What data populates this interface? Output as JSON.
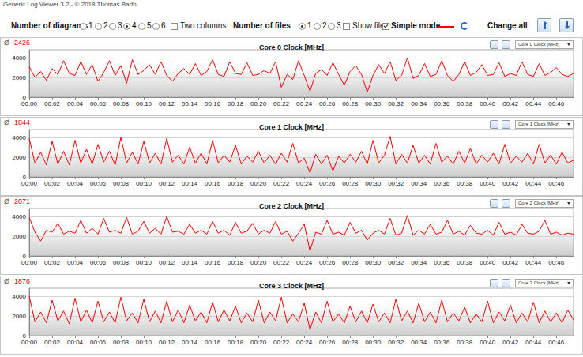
{
  "window": {
    "title": "Generic Log Viewer 3.2 - © 2018 Thomas Barth",
    "controls": {
      "diagrams": {
        "label": "Number of diagrams",
        "options": [
          "1",
          "2",
          "3",
          "4",
          "5",
          "6"
        ],
        "selected": "4"
      },
      "two_columns": {
        "label": "Two columns",
        "checked": false
      },
      "files": {
        "label": "Number of files",
        "options": [
          "1",
          "2",
          "3"
        ],
        "selected": "1"
      },
      "show_files": {
        "label": "Show files",
        "checked": false
      },
      "simple_mode": {
        "label": "Simple mode",
        "checked": true
      },
      "change_all": "Change all"
    }
  },
  "chart_data": [
    {
      "type": "line",
      "title": "Core 0 Clock [MHz]",
      "selector": "Core 0 Clock [MHz]",
      "mean_symbol": "Ø",
      "mean": 2426,
      "color": "#ff0000",
      "grid": true,
      "x": [
        0,
        0.5,
        1,
        1.5,
        2,
        2.5,
        3,
        3.5,
        4,
        4.5,
        5,
        5.5,
        6,
        6.5,
        7,
        7.5,
        8,
        8.5,
        9,
        9.5,
        10,
        10.5,
        11,
        11.5,
        12,
        12.5,
        13,
        13.5,
        14,
        14.5,
        15,
        15.5,
        16,
        16.5,
        17,
        17.5,
        18,
        18.5,
        19,
        19.5,
        20,
        20.5,
        21,
        21.5,
        22,
        22.5,
        23,
        23.5,
        24,
        24.5,
        25,
        25.5,
        26,
        26.5,
        27,
        27.5,
        28,
        28.5,
        29,
        29.5,
        30,
        30.5,
        31,
        31.5,
        32,
        32.5,
        33,
        33.5,
        34,
        34.5,
        35,
        35.5,
        36,
        36.5,
        37,
        37.5,
        38,
        38.5,
        39,
        39.5,
        40,
        40.5,
        41,
        41.5,
        42,
        42.5,
        43,
        43.5,
        44,
        44.5,
        45,
        45.5,
        46,
        46.5,
        47,
        47.5
      ],
      "values": [
        3100,
        2000,
        2600,
        1700,
        2900,
        2300,
        3700,
        2400,
        2200,
        3600,
        2300,
        3300,
        1600,
        2500,
        3700,
        2200,
        3200,
        1400,
        3800,
        2300,
        2700,
        3300,
        2300,
        3600,
        2200,
        1600,
        2400,
        2900,
        2300,
        3400,
        2200,
        2600,
        3800,
        2300,
        2100,
        3600,
        2400,
        2300,
        3500,
        2200,
        2300,
        2700,
        2400,
        3600,
        1000,
        2300,
        1800,
        3700,
        2200,
        600,
        2400,
        2800,
        2200,
        3500,
        2300,
        1200,
        2600,
        3200,
        2300,
        500,
        2200,
        3300,
        2400,
        3600,
        1700,
        2200,
        4000,
        1900,
        2200,
        3400,
        2100,
        2300,
        3700,
        2200,
        1600,
        2300,
        3600,
        2200,
        2500,
        3300,
        2200,
        2300,
        3500,
        2100,
        2400,
        2200,
        3600,
        2300,
        2100,
        3400,
        2200,
        2500,
        3000,
        2300,
        2100,
        2400
      ],
      "xlim": [
        0,
        47.5
      ],
      "xticks": [
        {
          "value": 0,
          "label": "00:00"
        },
        {
          "value": 2,
          "label": "00:02"
        },
        {
          "value": 4,
          "label": "00:04"
        },
        {
          "value": 6,
          "label": "00:06"
        },
        {
          "value": 8,
          "label": "00:08"
        },
        {
          "value": 10,
          "label": "00:10"
        },
        {
          "value": 12,
          "label": "00:12"
        },
        {
          "value": 14,
          "label": "00:14"
        },
        {
          "value": 16,
          "label": "00:16"
        },
        {
          "value": 18,
          "label": "00:18"
        },
        {
          "value": 20,
          "label": "00:20"
        },
        {
          "value": 22,
          "label": "00:22"
        },
        {
          "value": 24,
          "label": "00:24"
        },
        {
          "value": 26,
          "label": "00:26"
        },
        {
          "value": 28,
          "label": "00:28"
        },
        {
          "value": 30,
          "label": "00:30"
        },
        {
          "value": 32,
          "label": "00:32"
        },
        {
          "value": 34,
          "label": "00:34"
        },
        {
          "value": 36,
          "label": "00:36"
        },
        {
          "value": 38,
          "label": "00:38"
        },
        {
          "value": 40,
          "label": "00:40"
        },
        {
          "value": 42,
          "label": "00:42"
        },
        {
          "value": 44,
          "label": "00:44"
        },
        {
          "value": 46,
          "label": "00:46"
        }
      ],
      "ylim": [
        0,
        4800
      ],
      "yticks": [
        0,
        2000,
        4000
      ]
    },
    {
      "type": "line",
      "title": "Core 1 Clock [MHz]",
      "selector": "Core 1 Clock [MHz]",
      "mean_symbol": "Ø",
      "mean": 1844,
      "color": "#ff0000",
      "grid": true,
      "x": [
        0,
        0.5,
        1,
        1.5,
        2,
        2.5,
        3,
        3.5,
        4,
        4.5,
        5,
        5.5,
        6,
        6.5,
        7,
        7.5,
        8,
        8.5,
        9,
        9.5,
        10,
        10.5,
        11,
        11.5,
        12,
        12.5,
        13,
        13.5,
        14,
        14.5,
        15,
        15.5,
        16,
        16.5,
        17,
        17.5,
        18,
        18.5,
        19,
        19.5,
        20,
        20.5,
        21,
        21.5,
        22,
        22.5,
        23,
        23.5,
        24,
        24.5,
        25,
        25.5,
        26,
        26.5,
        27,
        27.5,
        28,
        28.5,
        29,
        29.5,
        30,
        30.5,
        31,
        31.5,
        32,
        32.5,
        33,
        33.5,
        34,
        34.5,
        35,
        35.5,
        36,
        36.5,
        37,
        37.5,
        38,
        38.5,
        39,
        39.5,
        40,
        40.5,
        41,
        41.5,
        42,
        42.5,
        43,
        43.5,
        44,
        44.5,
        45,
        45.5,
        46,
        46.5,
        47,
        47.5
      ],
      "values": [
        3900,
        1400,
        2500,
        1200,
        3600,
        1300,
        2600,
        1200,
        3700,
        1400,
        2800,
        1300,
        3300,
        1500,
        2600,
        1200,
        4000,
        1400,
        2500,
        1300,
        3600,
        1400,
        2400,
        1300,
        3900,
        1500,
        2200,
        1300,
        3000,
        1400,
        2400,
        1300,
        3700,
        1400,
        2200,
        1500,
        3200,
        1300,
        2100,
        1500,
        2600,
        1400,
        2200,
        1300,
        2400,
        1500,
        3400,
        1400,
        1900,
        400,
        2300,
        1300,
        2200,
        600,
        2100,
        1400,
        2300,
        1500,
        2600,
        1300,
        3700,
        1400,
        2200,
        4100,
        1300,
        2300,
        1400,
        3200,
        1400,
        2200,
        1300,
        3400,
        1500,
        2100,
        1300,
        2600,
        1400,
        2900,
        1300,
        2200,
        1500,
        2400,
        1300,
        3300,
        1400,
        2100,
        1500,
        2400,
        1300,
        3300,
        1400,
        2200,
        1300,
        2500,
        1400,
        1700
      ],
      "xlim": [
        0,
        47.5
      ],
      "xticks": [
        {
          "value": 0,
          "label": "00:00"
        },
        {
          "value": 2,
          "label": "00:02"
        },
        {
          "value": 4,
          "label": "00:04"
        },
        {
          "value": 6,
          "label": "00:06"
        },
        {
          "value": 8,
          "label": "00:08"
        },
        {
          "value": 10,
          "label": "00:10"
        },
        {
          "value": 12,
          "label": "00:12"
        },
        {
          "value": 14,
          "label": "00:14"
        },
        {
          "value": 16,
          "label": "00:16"
        },
        {
          "value": 18,
          "label": "00:18"
        },
        {
          "value": 20,
          "label": "00:20"
        },
        {
          "value": 22,
          "label": "00:22"
        },
        {
          "value": 24,
          "label": "00:24"
        },
        {
          "value": 26,
          "label": "00:26"
        },
        {
          "value": 28,
          "label": "00:28"
        },
        {
          "value": 30,
          "label": "00:30"
        },
        {
          "value": 32,
          "label": "00:32"
        },
        {
          "value": 34,
          "label": "00:34"
        },
        {
          "value": 36,
          "label": "00:36"
        },
        {
          "value": 38,
          "label": "00:38"
        },
        {
          "value": 40,
          "label": "00:40"
        },
        {
          "value": 42,
          "label": "00:42"
        },
        {
          "value": 44,
          "label": "00:44"
        },
        {
          "value": 46,
          "label": "00:46"
        }
      ],
      "ylim": [
        0,
        4800
      ],
      "yticks": [
        0,
        2000,
        4000
      ]
    },
    {
      "type": "line",
      "title": "Core 2 Clock [MHz]",
      "selector": "Core 2 Clock [MHz]",
      "mean_symbol": "Ø",
      "mean": 2071,
      "color": "#ff0000",
      "grid": true,
      "x": [
        0,
        0.5,
        1,
        1.5,
        2,
        2.5,
        3,
        3.5,
        4,
        4.5,
        5,
        5.5,
        6,
        6.5,
        7,
        7.5,
        8,
        8.5,
        9,
        9.5,
        10,
        10.5,
        11,
        11.5,
        12,
        12.5,
        13,
        13.5,
        14,
        14.5,
        15,
        15.5,
        16,
        16.5,
        17,
        17.5,
        18,
        18.5,
        19,
        19.5,
        20,
        20.5,
        21,
        21.5,
        22,
        22.5,
        23,
        23.5,
        24,
        24.5,
        25,
        25.5,
        26,
        26.5,
        27,
        27.5,
        28,
        28.5,
        29,
        29.5,
        30,
        30.5,
        31,
        31.5,
        32,
        32.5,
        33,
        33.5,
        34,
        34.5,
        35,
        35.5,
        36,
        36.5,
        37,
        37.5,
        38,
        38.5,
        39,
        39.5,
        40,
        40.5,
        41,
        41.5,
        42,
        42.5,
        43,
        43.5,
        44,
        44.5,
        45,
        45.5,
        46,
        46.5,
        47,
        47.5
      ],
      "values": [
        3900,
        2400,
        1500,
        2600,
        2400,
        3300,
        2200,
        2500,
        2300,
        3600,
        2300,
        2800,
        2200,
        3800,
        2400,
        2600,
        2300,
        3900,
        2200,
        2500,
        3500,
        2300,
        2800,
        2200,
        4000,
        2400,
        2500,
        2200,
        3200,
        2300,
        2600,
        2200,
        3500,
        2300,
        2600,
        2100,
        3400,
        2300,
        2500,
        3300,
        2200,
        2600,
        2300,
        3500,
        2200,
        2500,
        1500,
        2300,
        3200,
        500,
        2400,
        2200,
        3600,
        2200,
        2400,
        2100,
        3400,
        2300,
        2600,
        1600,
        2300,
        2600,
        2200,
        3800,
        2100,
        2300,
        4100,
        2100,
        2600,
        2200,
        3200,
        2200,
        2400,
        3600,
        2200,
        2500,
        2100,
        3100,
        2300,
        2200,
        2600,
        2100,
        3400,
        2200,
        2400,
        2100,
        3200,
        2300,
        2200,
        2500,
        3600,
        2200,
        2400,
        2100,
        2300,
        2200
      ],
      "xlim": [
        0,
        47.5
      ],
      "xticks": [
        {
          "value": 0,
          "label": "00:00"
        },
        {
          "value": 2,
          "label": "00:02"
        },
        {
          "value": 4,
          "label": "00:04"
        },
        {
          "value": 6,
          "label": "00:06"
        },
        {
          "value": 8,
          "label": "00:08"
        },
        {
          "value": 10,
          "label": "00:10"
        },
        {
          "value": 12,
          "label": "00:12"
        },
        {
          "value": 14,
          "label": "00:14"
        },
        {
          "value": 16,
          "label": "00:16"
        },
        {
          "value": 18,
          "label": "00:18"
        },
        {
          "value": 20,
          "label": "00:20"
        },
        {
          "value": 22,
          "label": "00:22"
        },
        {
          "value": 24,
          "label": "00:24"
        },
        {
          "value": 26,
          "label": "00:26"
        },
        {
          "value": 28,
          "label": "00:28"
        },
        {
          "value": 30,
          "label": "00:30"
        },
        {
          "value": 32,
          "label": "00:32"
        },
        {
          "value": 34,
          "label": "00:34"
        },
        {
          "value": 36,
          "label": "00:36"
        },
        {
          "value": 38,
          "label": "00:38"
        },
        {
          "value": 40,
          "label": "00:40"
        },
        {
          "value": 42,
          "label": "00:42"
        },
        {
          "value": 44,
          "label": "00:44"
        },
        {
          "value": 46,
          "label": "00:46"
        }
      ],
      "ylim": [
        0,
        4800
      ],
      "yticks": [
        0,
        2000,
        4000
      ]
    },
    {
      "type": "line",
      "title": "Core 3 Clock [MHz]",
      "selector": "Core 3 Clock [MHz]",
      "mean_symbol": "Ø",
      "mean": 1876,
      "color": "#ff0000",
      "grid": true,
      "x": [
        0,
        0.5,
        1,
        1.5,
        2,
        2.5,
        3,
        3.5,
        4,
        4.5,
        5,
        5.5,
        6,
        6.5,
        7,
        7.5,
        8,
        8.5,
        9,
        9.5,
        10,
        10.5,
        11,
        11.5,
        12,
        12.5,
        13,
        13.5,
        14,
        14.5,
        15,
        15.5,
        16,
        16.5,
        17,
        17.5,
        18,
        18.5,
        19,
        19.5,
        20,
        20.5,
        21,
        21.5,
        22,
        22.5,
        23,
        23.5,
        24,
        24.5,
        25,
        25.5,
        26,
        26.5,
        27,
        27.5,
        28,
        28.5,
        29,
        29.5,
        30,
        30.5,
        31,
        31.5,
        32,
        32.5,
        33,
        33.5,
        34,
        34.5,
        35,
        35.5,
        36,
        36.5,
        37,
        37.5,
        38,
        38.5,
        39,
        39.5,
        40,
        40.5,
        41,
        41.5,
        42,
        42.5,
        43,
        43.5,
        44,
        44.5,
        45,
        45.5,
        46,
        46.5,
        47,
        47.5
      ],
      "values": [
        4000,
        1400,
        2400,
        1300,
        3600,
        1500,
        2500,
        1200,
        3800,
        1400,
        2600,
        1300,
        3500,
        1400,
        2400,
        1300,
        3900,
        1500,
        2300,
        1300,
        3700,
        1400,
        2500,
        1300,
        3500,
        1400,
        2600,
        1300,
        3100,
        1500,
        2400,
        1300,
        3400,
        1400,
        2600,
        1500,
        3000,
        1300,
        2300,
        1400,
        3600,
        1300,
        2400,
        1500,
        3900,
        1300,
        2200,
        1400,
        3300,
        600,
        2400,
        1300,
        3500,
        1400,
        2200,
        1300,
        3000,
        1400,
        2500,
        1300,
        3200,
        1400,
        2300,
        1300,
        3700,
        1500,
        2500,
        1300,
        3300,
        1400,
        2400,
        1300,
        3600,
        1400,
        2300,
        1500,
        2900,
        1300,
        2200,
        1400,
        3500,
        1300,
        2400,
        1500,
        3100,
        1300,
        2300,
        1400,
        3400,
        1300,
        2500,
        1400,
        2300,
        1300,
        2600,
        1600
      ],
      "xlim": [
        0,
        47.5
      ],
      "xticks": [
        {
          "value": 0,
          "label": "00:00"
        },
        {
          "value": 2,
          "label": "00:02"
        },
        {
          "value": 4,
          "label": "00:04"
        },
        {
          "value": 6,
          "label": "00:06"
        },
        {
          "value": 8,
          "label": "00:08"
        },
        {
          "value": 10,
          "label": "00:10"
        },
        {
          "value": 12,
          "label": "00:12"
        },
        {
          "value": 14,
          "label": "00:14"
        },
        {
          "value": 16,
          "label": "00:16"
        },
        {
          "value": 18,
          "label": "00:18"
        },
        {
          "value": 20,
          "label": "00:20"
        },
        {
          "value": 22,
          "label": "00:22"
        },
        {
          "value": 24,
          "label": "00:24"
        },
        {
          "value": 26,
          "label": "00:26"
        },
        {
          "value": 28,
          "label": "00:28"
        },
        {
          "value": 30,
          "label": "00:30"
        },
        {
          "value": 32,
          "label": "00:32"
        },
        {
          "value": 34,
          "label": "00:34"
        },
        {
          "value": 36,
          "label": "00:36"
        },
        {
          "value": 38,
          "label": "00:38"
        },
        {
          "value": 40,
          "label": "00:40"
        },
        {
          "value": 42,
          "label": "00:42"
        },
        {
          "value": 44,
          "label": "00:44"
        },
        {
          "value": 46,
          "label": "00:46"
        }
      ],
      "ylim": [
        0,
        4800
      ],
      "yticks": [
        0,
        2000,
        4000
      ]
    }
  ]
}
